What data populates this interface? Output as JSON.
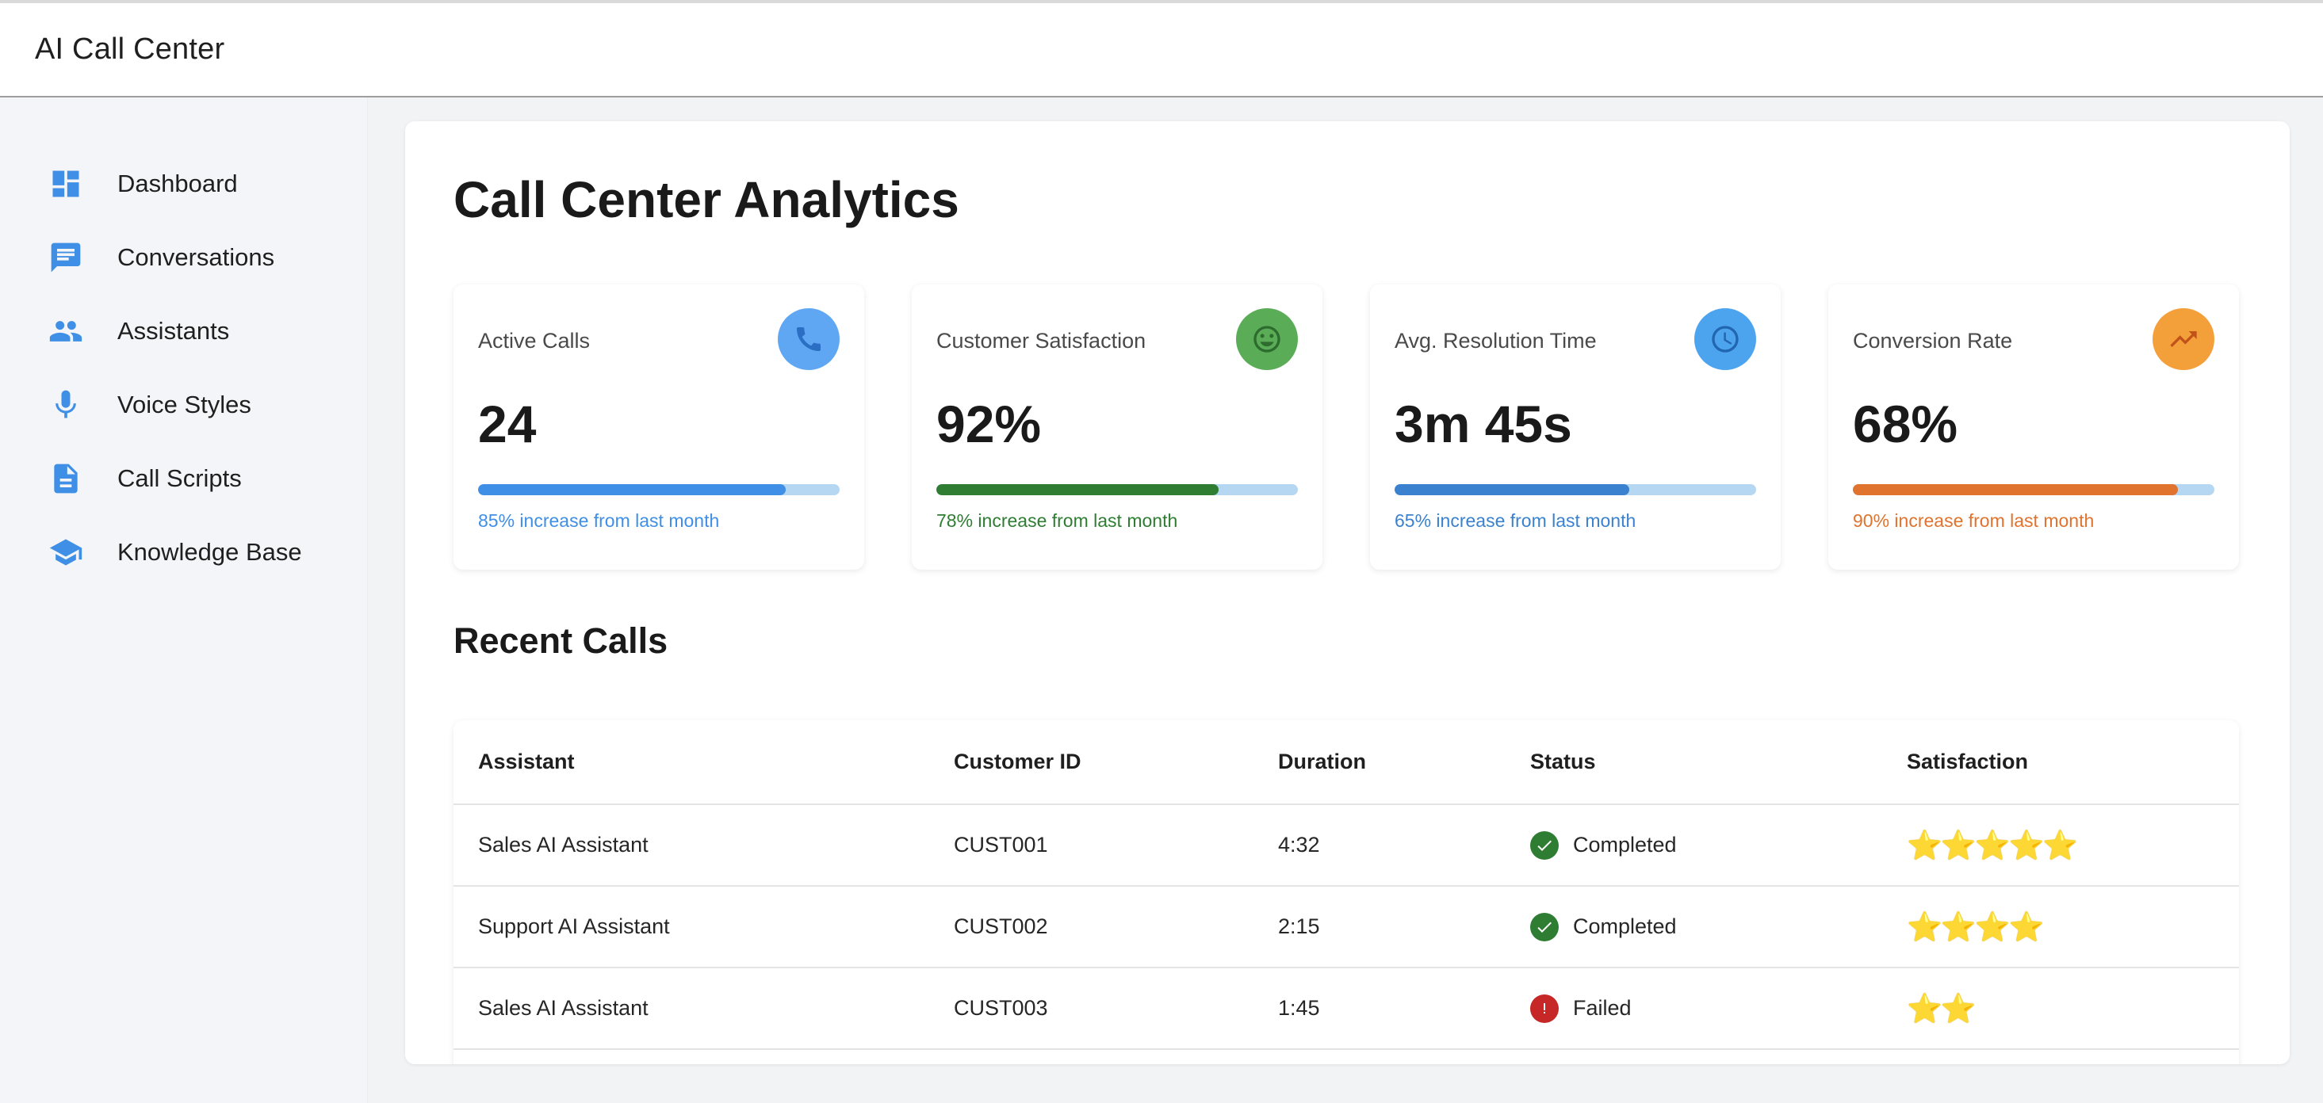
{
  "app": {
    "title": "AI Call Center"
  },
  "sidebar": {
    "items": [
      {
        "label": "Dashboard",
        "icon": "dashboard-icon"
      },
      {
        "label": "Conversations",
        "icon": "chat-icon"
      },
      {
        "label": "Assistants",
        "icon": "people-icon"
      },
      {
        "label": "Voice Styles",
        "icon": "microphone-icon"
      },
      {
        "label": "Call Scripts",
        "icon": "document-icon"
      },
      {
        "label": "Knowledge Base",
        "icon": "school-icon"
      }
    ],
    "accent": "#3f8fe6"
  },
  "main": {
    "title": "Call Center Analytics",
    "stats": [
      {
        "label": "Active Calls",
        "value": "24",
        "note": "85% increase from last month",
        "progress": 0.85,
        "color": "#3f8fe6",
        "icon_bg": "#60a7f3",
        "icon": "phone-icon"
      },
      {
        "label": "Customer Satisfaction",
        "value": "92%",
        "note": "78% increase from last month",
        "progress": 0.78,
        "color": "#2e7d32",
        "icon_bg": "#5aac57",
        "icon": "smiley-icon"
      },
      {
        "label": "Avg. Resolution Time",
        "value": "3m 45s",
        "note": "65% increase from last month",
        "progress": 0.65,
        "color": "#3a82cf",
        "icon_bg": "#4ca3ee",
        "icon": "clock-icon"
      },
      {
        "label": "Conversion Rate",
        "value": "68%",
        "note": "90% increase from last month",
        "progress": 0.9,
        "color": "#e0732e",
        "icon_bg": "#f4a03a",
        "icon": "trending-up-icon"
      }
    ],
    "recent_calls": {
      "title": "Recent Calls",
      "columns": [
        "Assistant",
        "Customer ID",
        "Duration",
        "Status",
        "Satisfaction"
      ],
      "rows": [
        {
          "assistant": "Sales AI Assistant",
          "customer_id": "CUST001",
          "duration": "4:32",
          "status": "Completed",
          "status_type": "success",
          "stars": "⭐⭐⭐⭐⭐",
          "rating": 5
        },
        {
          "assistant": "Support AI Assistant",
          "customer_id": "CUST002",
          "duration": "2:15",
          "status": "Completed",
          "status_type": "success",
          "stars": "⭐⭐⭐⭐",
          "rating": 4
        },
        {
          "assistant": "Sales AI Assistant",
          "customer_id": "CUST003",
          "duration": "1:45",
          "status": "Failed",
          "status_type": "error",
          "stars": "⭐⭐",
          "rating": 2
        }
      ]
    }
  }
}
